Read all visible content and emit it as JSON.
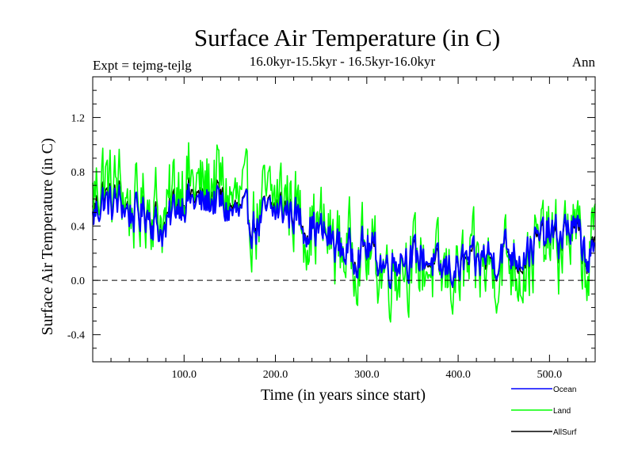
{
  "chart_data": {
    "type": "line",
    "title": "Surface Air Temperature (in C)",
    "subtitle": "16.0kyr-15.5kyr - 16.5kyr-16.0kyr",
    "left_label": "Expt = tejmg-tejlg",
    "right_label": "Ann",
    "xlabel": "Time (in years since start)",
    "ylabel": "Surface Air Temperature (in C)",
    "xlim": [
      0,
      550
    ],
    "ylim": [
      -0.6,
      1.5
    ],
    "x_ticks": [
      100,
      200,
      300,
      400,
      500
    ],
    "x_tick_labels": [
      "100.0",
      "200.0",
      "300.0",
      "400.0",
      "500.0"
    ],
    "y_ticks": [
      -0.4,
      0.0,
      0.4,
      0.8,
      1.2
    ],
    "y_tick_labels": [
      "-0.4",
      "0.0",
      "0.4",
      "0.8",
      "1.2"
    ],
    "reference_line": 0.0,
    "legend_position": "bottom-right",
    "series": [
      {
        "name": "Ocean",
        "color": "#0000ff",
        "x": [
          0,
          10,
          20,
          30,
          40,
          50,
          60,
          70,
          80,
          90,
          100,
          110,
          120,
          130,
          140,
          150,
          160,
          170,
          180,
          190,
          200,
          210,
          220,
          230,
          240,
          250,
          260,
          270,
          280,
          290,
          300,
          310,
          320,
          330,
          340,
          350,
          360,
          370,
          380,
          390,
          400,
          410,
          420,
          430,
          440,
          450,
          460,
          470,
          480,
          490,
          500,
          510,
          520,
          530,
          540,
          550
        ],
        "values": [
          0.45,
          0.6,
          0.55,
          0.58,
          0.5,
          0.48,
          0.52,
          0.4,
          0.35,
          0.55,
          0.6,
          0.58,
          0.55,
          0.6,
          0.55,
          0.5,
          0.48,
          0.45,
          0.4,
          0.48,
          0.5,
          0.52,
          0.5,
          0.42,
          0.4,
          0.35,
          0.3,
          0.25,
          0.2,
          0.22,
          0.25,
          0.2,
          0.1,
          0.15,
          0.2,
          0.15,
          0.18,
          0.15,
          0.05,
          0.1,
          0.08,
          0.15,
          0.1,
          0.2,
          0.15,
          0.25,
          0.2,
          0.2,
          0.25,
          0.3,
          0.35,
          0.3,
          0.4,
          0.35,
          0.2,
          0.15
        ]
      },
      {
        "name": "Land",
        "color": "#00ff00",
        "x": [
          0,
          10,
          20,
          30,
          40,
          50,
          60,
          70,
          80,
          90,
          100,
          110,
          120,
          130,
          140,
          150,
          160,
          170,
          180,
          190,
          200,
          210,
          220,
          230,
          240,
          250,
          260,
          270,
          280,
          290,
          300,
          310,
          320,
          330,
          340,
          350,
          360,
          370,
          380,
          390,
          400,
          410,
          420,
          430,
          440,
          450,
          460,
          470,
          480,
          490,
          500,
          510,
          520,
          530,
          540,
          550
        ],
        "values": [
          0.6,
          0.8,
          0.65,
          0.7,
          0.55,
          0.5,
          0.6,
          0.55,
          0.4,
          0.7,
          0.8,
          0.7,
          0.65,
          0.75,
          0.7,
          0.6,
          0.55,
          0.5,
          0.45,
          0.55,
          0.6,
          0.65,
          0.55,
          0.45,
          0.4,
          0.38,
          0.3,
          0.25,
          0.22,
          0.25,
          0.2,
          0.15,
          0.1,
          0.1,
          0.2,
          0.1,
          0.15,
          0.1,
          0.0,
          0.05,
          0.05,
          0.05,
          0.1,
          0.1,
          0.1,
          0.2,
          0.15,
          0.1,
          0.2,
          0.25,
          0.3,
          0.2,
          0.4,
          0.3,
          0.1,
          0.3
        ]
      },
      {
        "name": "AllSurf",
        "color": "#000000",
        "x": [
          0,
          10,
          20,
          30,
          40,
          50,
          60,
          70,
          80,
          90,
          100,
          110,
          120,
          130,
          140,
          150,
          160,
          170,
          180,
          190,
          200,
          210,
          220,
          230,
          240,
          250,
          260,
          270,
          280,
          290,
          300,
          310,
          320,
          330,
          340,
          350,
          360,
          370,
          380,
          390,
          400,
          410,
          420,
          430,
          440,
          450,
          460,
          470,
          480,
          490,
          500,
          510,
          520,
          530,
          540,
          550
        ],
        "values": [
          0.5,
          0.65,
          0.58,
          0.62,
          0.52,
          0.49,
          0.55,
          0.45,
          0.37,
          0.6,
          0.66,
          0.62,
          0.58,
          0.65,
          0.6,
          0.53,
          0.5,
          0.47,
          0.42,
          0.5,
          0.53,
          0.56,
          0.52,
          0.43,
          0.4,
          0.36,
          0.3,
          0.25,
          0.21,
          0.23,
          0.23,
          0.18,
          0.1,
          0.13,
          0.2,
          0.13,
          0.17,
          0.13,
          0.03,
          0.08,
          0.07,
          0.11,
          0.1,
          0.16,
          0.13,
          0.23,
          0.18,
          0.16,
          0.23,
          0.28,
          0.33,
          0.26,
          0.4,
          0.33,
          0.16,
          0.21
        ]
      }
    ]
  }
}
